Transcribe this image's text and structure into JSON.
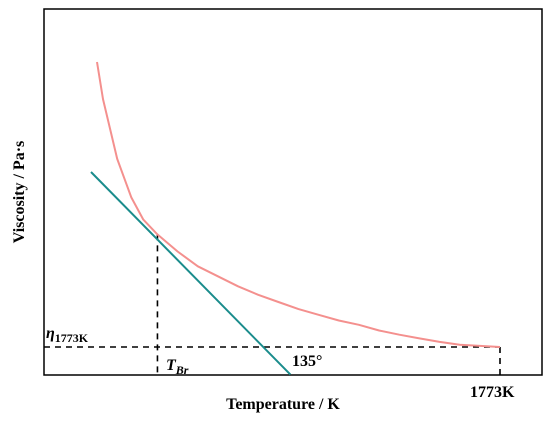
{
  "chart_data": {
    "type": "line",
    "xlabel": "Temperature / K",
    "ylabel": "Viscosity / Pa·s",
    "grid": false,
    "legend": "none",
    "series": [
      {
        "kind": "curve",
        "color": "#f4908e",
        "points": [
          [
            0.0,
            1.0
          ],
          [
            0.015,
            0.87
          ],
          [
            0.05,
            0.66
          ],
          [
            0.085,
            0.525
          ],
          [
            0.115,
            0.447
          ],
          [
            0.15,
            0.395
          ],
          [
            0.2,
            0.335
          ],
          [
            0.25,
            0.283
          ],
          [
            0.3,
            0.248
          ],
          [
            0.35,
            0.213
          ],
          [
            0.4,
            0.183
          ],
          [
            0.45,
            0.158
          ],
          [
            0.5,
            0.133
          ],
          [
            0.55,
            0.113
          ],
          [
            0.6,
            0.093
          ],
          [
            0.65,
            0.078
          ],
          [
            0.7,
            0.058
          ],
          [
            0.75,
            0.043
          ],
          [
            0.8,
            0.03
          ],
          [
            0.85,
            0.018
          ],
          [
            0.9,
            0.008
          ],
          [
            1.0,
            0.0
          ]
        ]
      },
      {
        "kind": "tangent",
        "color": "#1a8c8c",
        "points": [
          [
            -0.015,
            0.614
          ],
          [
            0.48,
            -0.097
          ]
        ]
      }
    ],
    "reference": {
      "tangent_point": [
        0.15,
        0.395
      ],
      "end_point": [
        1.0,
        0.0
      ]
    },
    "annotations": {
      "t_br_main": "T",
      "t_br_sub": "Br",
      "angle": "135°",
      "end_temp": "1773K",
      "eta_main": "η",
      "eta_sub": "1773K"
    }
  }
}
